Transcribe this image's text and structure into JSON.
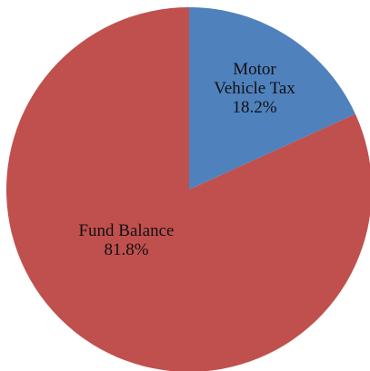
{
  "chart_data": {
    "type": "pie",
    "title": "",
    "start_angle_deg": 0,
    "direction": "clockwise",
    "legend": "none",
    "slices": [
      {
        "label_lines": [
          "Motor",
          "Vehicle Tax"
        ],
        "percent_label": "18.2%",
        "value": 18.2,
        "color": "#4f81bd"
      },
      {
        "label_lines": [
          "Fund Balance"
        ],
        "percent_label": "81.8%",
        "value": 81.8,
        "color": "#c0504d"
      }
    ]
  }
}
